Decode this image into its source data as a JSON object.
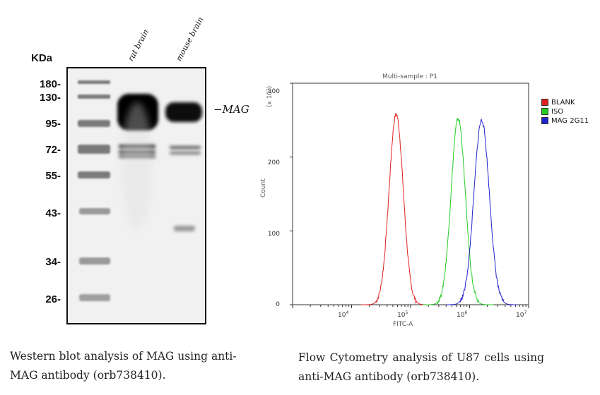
{
  "western_blot": {
    "unit_label": "KDa",
    "markers": [
      "180-",
      "130-",
      "95-",
      "72-",
      "55-",
      "43-",
      "34-",
      "26-"
    ],
    "lanes": [
      "rat brain",
      "mouse brain"
    ],
    "band_label": "−MAG",
    "caption": "Western blot analysis of MAG using anti-MAG antibody (orb738410)."
  },
  "flow_cytometry": {
    "caption": "Flow Cytometry analysis of U87 cells using anti-MAG antibody (orb738410)."
  },
  "chart_data": {
    "type": "line",
    "title": "Multi-sample : P1",
    "xlabel": "FITC-A",
    "ylabel": "Count",
    "y_unit": "(x 10¹)",
    "x_scale": "log",
    "xlim": [
      1000,
      10000000
    ],
    "ylim": [
      0,
      300
    ],
    "x_tick_exponents": [
      "4",
      "5",
      "6",
      "7"
    ],
    "y_ticks": [
      "0",
      "100",
      "200",
      "300"
    ],
    "legend_position": "top-right",
    "series": [
      {
        "name": "BLANK",
        "color": "#e02020",
        "peak_x": 57000,
        "peak_y": 258,
        "log_width": 0.12
      },
      {
        "name": "ISO",
        "color": "#22cc22",
        "peak_x": 640000,
        "peak_y": 252,
        "log_width": 0.12
      },
      {
        "name": "MAG 2G11",
        "color": "#2222cc",
        "peak_x": 1600000,
        "peak_y": 250,
        "log_width": 0.13
      }
    ]
  }
}
